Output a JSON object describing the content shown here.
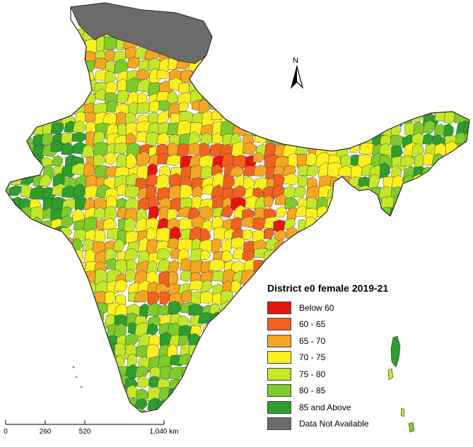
{
  "legend": {
    "title": "District e0 female 2019-21",
    "items": [
      {
        "label": "Below  60",
        "color": "#e8140e"
      },
      {
        "label": "60 - 65",
        "color": "#f2621f"
      },
      {
        "label": "65 - 70",
        "color": "#f5a623"
      },
      {
        "label": "70 - 75",
        "color": "#fbf01e"
      },
      {
        "label": "75 - 80",
        "color": "#c4e829"
      },
      {
        "label": "80 - 85",
        "color": "#7fcb2b"
      },
      {
        "label": "85 and Above",
        "color": "#2e9e2c"
      },
      {
        "label": "Data Not Available",
        "color": "#6b6b6b"
      }
    ]
  },
  "north_arrow": {
    "label": "N"
  },
  "scale_bar": {
    "labels": [
      "0",
      "260",
      "520",
      "1,040 km"
    ]
  },
  "colors": {
    "boundary": "#3a3a3a",
    "background": "#ffffff"
  }
}
